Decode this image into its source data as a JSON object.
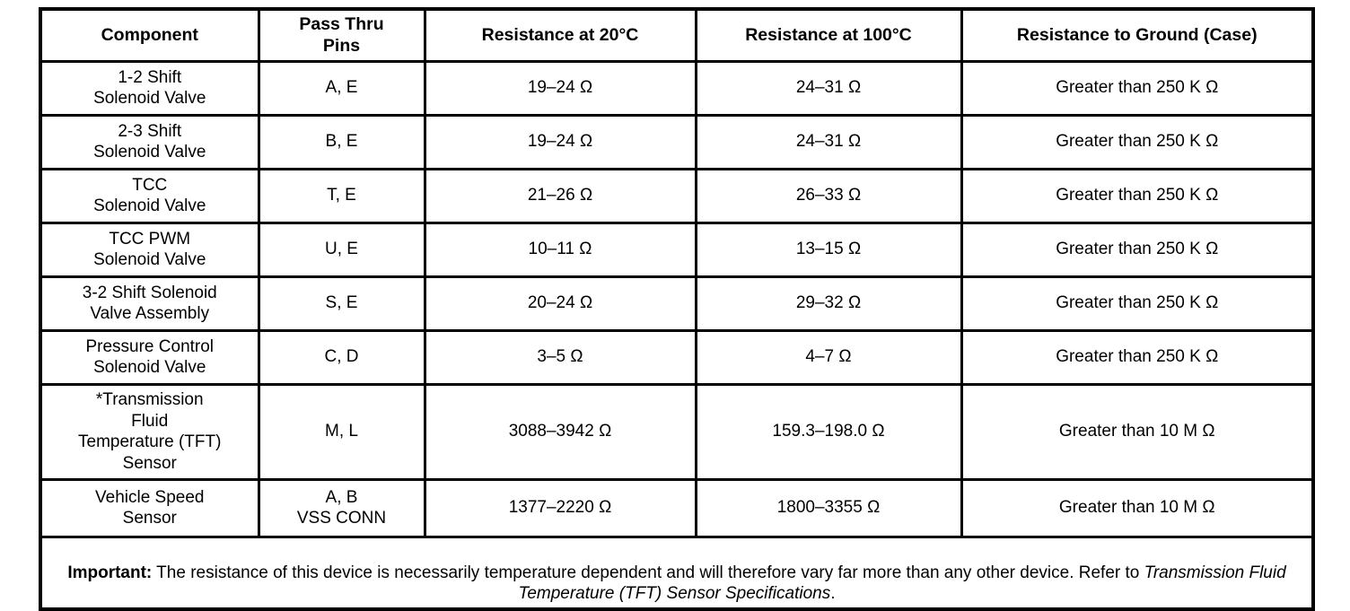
{
  "table": {
    "headers": [
      "Component",
      "Pass Thru\nPins",
      "Resistance at 20°C",
      "Resistance at 100°C",
      "Resistance to Ground (Case)"
    ],
    "rows": [
      {
        "component": "1-2 Shift\nSolenoid Valve",
        "pins": "A, E",
        "r20": "19–24 Ω",
        "r100": "24–31 Ω",
        "ground": "Greater than 250 K Ω"
      },
      {
        "component": "2-3 Shift\nSolenoid Valve",
        "pins": "B, E",
        "r20": "19–24 Ω",
        "r100": "24–31 Ω",
        "ground": "Greater than 250 K Ω"
      },
      {
        "component": "TCC\nSolenoid Valve",
        "pins": "T, E",
        "r20": "21–26 Ω",
        "r100": "26–33 Ω",
        "ground": "Greater than 250 K Ω"
      },
      {
        "component": "TCC PWM\nSolenoid Valve",
        "pins": "U, E",
        "r20": "10–11 Ω",
        "r100": "13–15 Ω",
        "ground": "Greater than 250 K Ω"
      },
      {
        "component": "3-2 Shift Solenoid\nValve Assembly",
        "pins": "S, E",
        "r20": "20–24 Ω",
        "r100": "29–32 Ω",
        "ground": "Greater than 250 K Ω"
      },
      {
        "component": "Pressure Control\nSolenoid Valve",
        "pins": "C, D",
        "r20": "3–5 Ω",
        "r100": "4–7 Ω",
        "ground": "Greater than 250 K Ω"
      },
      {
        "component": "*Transmission\nFluid\nTemperature (TFT)\nSensor",
        "pins": "M, L",
        "r20": "3088–3942 Ω",
        "r100": "159.3–198.0 Ω",
        "ground": "Greater than 10 M Ω"
      },
      {
        "component": "Vehicle Speed\nSensor",
        "pins": "A, B\nVSS CONN",
        "r20": "1377–2220 Ω",
        "r100": "1800–3355 Ω",
        "ground": "Greater than 10 M Ω"
      }
    ],
    "footer": {
      "label": "Important:",
      "text_before_italic": " The resistance of this device is necessarily temperature dependent and will therefore vary far more than any other device. Refer to ",
      "italic_text": "Transmission Fluid Temperature (TFT) Sensor Specifications",
      "text_after_italic": "."
    }
  }
}
